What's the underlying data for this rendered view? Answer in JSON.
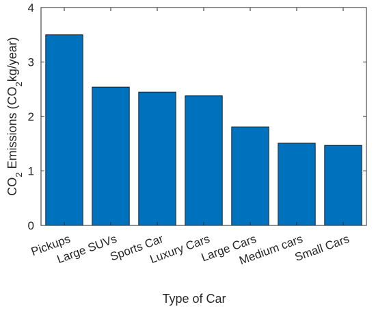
{
  "chart_data": {
    "type": "bar",
    "title": "",
    "xlabel": "Type of Car",
    "ylabel": {
      "prefix": "CO",
      "sub": "2",
      "middle": " Emissions (CO",
      "sub2": "2",
      "suffix": "kg/year)"
    },
    "categories": [
      "Pickups",
      "Large SUVs",
      "Sports Car",
      "Luxury Cars",
      "Large Cars",
      "Medium cars",
      "Small Cars"
    ],
    "values": [
      3.5,
      2.54,
      2.45,
      2.38,
      1.81,
      1.51,
      1.47
    ],
    "ylim": [
      0,
      4
    ],
    "yticks": [
      "0",
      "1",
      "2",
      "3",
      "4"
    ],
    "bar_color": "#0072BD",
    "grid": false
  }
}
